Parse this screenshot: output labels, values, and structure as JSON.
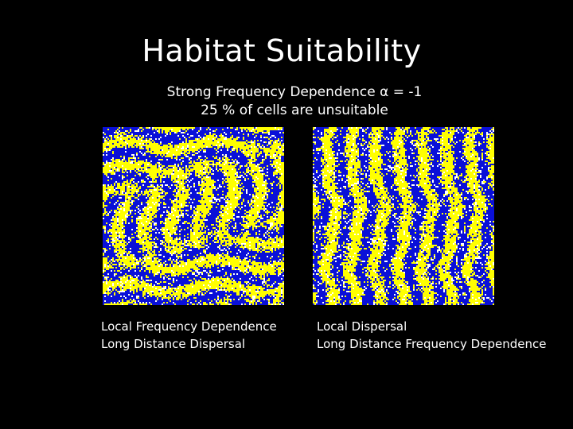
{
  "slide": {
    "title": "Habitat Suitability",
    "subtitle_line1": "Strong Frequency Dependence α = -1",
    "subtitle_line2": "25 % of cells are unsuitable"
  },
  "panels": [
    {
      "caption_line1": "Local Frequency Dependence",
      "caption_line2": "Long Distance Dispersal",
      "pattern": "stripes-mixed"
    },
    {
      "caption_line1": "Local Dispersal",
      "caption_line2": "Long Distance Frequency Dependence",
      "pattern": "stripes-vertical"
    }
  ],
  "colors": {
    "background": "#000000",
    "text": "#ffffff",
    "type_a": "#0a10d8",
    "type_b": "#ffff00",
    "unsuitable": "#ffffff"
  }
}
